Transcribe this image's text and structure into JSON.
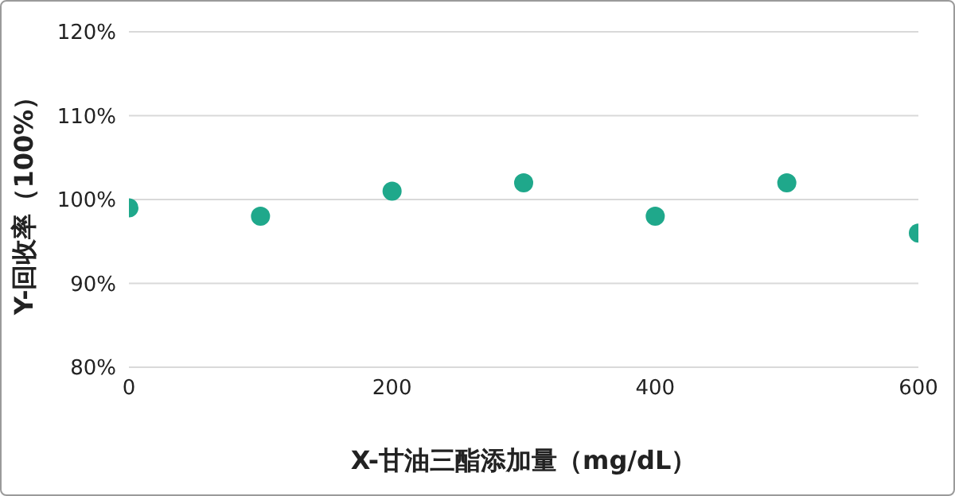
{
  "chart_data": {
    "type": "scatter",
    "xlabel": "X-甘油三酯添加量（mg/dL）",
    "ylabel": "Y-回收率（100%）",
    "x": [
      0,
      100,
      200,
      300,
      400,
      500,
      600
    ],
    "series": [
      {
        "color": "#1fa88b",
        "values": [
          99,
          98,
          101,
          102,
          98,
          102,
          96
        ]
      }
    ],
    "xlim": [
      0,
      600
    ],
    "xticks": [
      0,
      200,
      400,
      600
    ],
    "ylim": [
      80,
      120
    ],
    "yticks": [
      {
        "value": 80,
        "label": "80%"
      },
      {
        "value": 90,
        "label": "90%"
      },
      {
        "value": 100,
        "label": "100%"
      },
      {
        "value": 110,
        "label": "110%"
      },
      {
        "value": 120,
        "label": "120%"
      }
    ],
    "grid": "y",
    "marker": "circle",
    "legend": false
  }
}
